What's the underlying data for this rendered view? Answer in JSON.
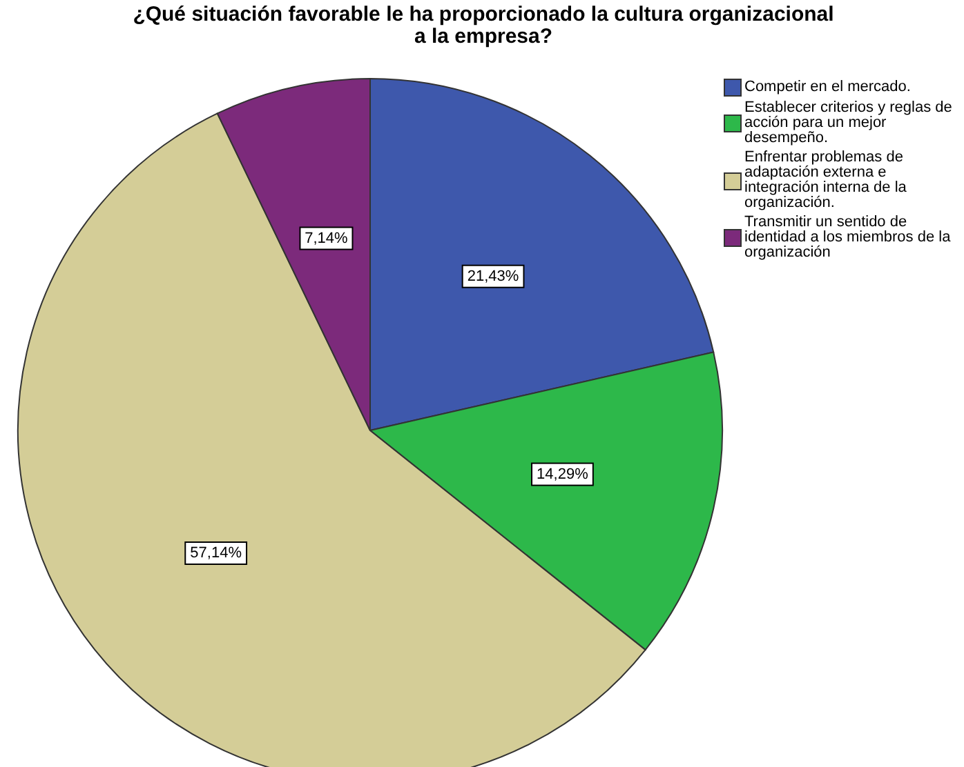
{
  "chart_data": {
    "type": "pie",
    "title": "¿Qué situación favorable le ha proporcionado la cultura organizacional a la empresa?",
    "categories": [
      "Competir en el mercado.",
      "Establecer criterios  y reglas de acción para un mejor desempeño.",
      "Enfrentar problemas de adaptación externa e integración interna de la organización.",
      "Transmitir un sentido de identidad a los miembros de la organización"
    ],
    "values": [
      21.43,
      14.29,
      57.14,
      7.14
    ],
    "colors": [
      "#3e58ac",
      "#2db84a",
      "#d4cd97",
      "#7c2a7b"
    ],
    "value_labels": [
      "21,43%",
      "14,29%",
      "57,14%",
      "7,14%"
    ],
    "legend": "top right"
  }
}
